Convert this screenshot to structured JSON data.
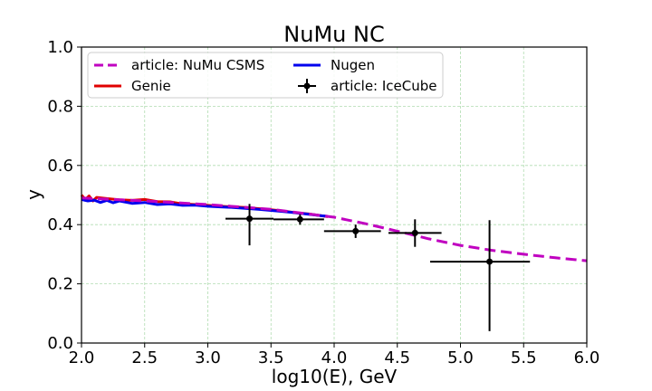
{
  "chart_data": {
    "type": "line",
    "title": "NuMu NC",
    "xlabel": "log10(E), GeV",
    "ylabel": "y",
    "xlim": [
      2.0,
      6.0
    ],
    "ylim": [
      0.0,
      1.0
    ],
    "xticks": [
      2.0,
      2.5,
      3.0,
      3.5,
      4.0,
      4.5,
      5.0,
      5.5,
      6.0
    ],
    "yticks": [
      0.0,
      0.2,
      0.4,
      0.6,
      0.8,
      1.0
    ],
    "xtick_labels": [
      "2.0",
      "2.5",
      "3.0",
      "3.5",
      "4.0",
      "4.5",
      "5.0",
      "5.5",
      "6.0"
    ],
    "ytick_labels": [
      "0.0",
      "0.2",
      "0.4",
      "0.6",
      "0.8",
      "1.0"
    ],
    "grid": true,
    "legend_position": "top-left",
    "series": [
      {
        "name": "article: NuMu CSMS",
        "style": "dashed",
        "color": "#c000c0",
        "x": [
          2.0,
          2.5,
          3.0,
          3.5,
          4.0,
          4.25,
          4.5,
          4.75,
          5.0,
          5.25,
          5.5,
          5.75,
          6.0
        ],
        "y": [
          0.49,
          0.48,
          0.468,
          0.452,
          0.425,
          0.403,
          0.378,
          0.352,
          0.33,
          0.313,
          0.3,
          0.288,
          0.278
        ]
      },
      {
        "name": "Genie",
        "style": "solid",
        "color": "#e00000",
        "x": [
          2.0,
          2.03,
          2.06,
          2.09,
          2.12,
          2.2,
          2.3,
          2.4,
          2.5,
          2.6,
          2.7,
          2.8,
          2.9,
          3.0,
          3.1,
          3.2,
          3.3,
          3.4,
          3.5,
          3.6,
          3.7,
          3.8,
          3.9,
          3.95
        ],
        "y": [
          0.5,
          0.485,
          0.497,
          0.48,
          0.492,
          0.488,
          0.484,
          0.482,
          0.485,
          0.478,
          0.477,
          0.47,
          0.468,
          0.465,
          0.462,
          0.46,
          0.458,
          0.454,
          0.45,
          0.446,
          0.44,
          0.436,
          0.43,
          0.427
        ]
      },
      {
        "name": "Nugen",
        "style": "solid",
        "color": "#0000ee",
        "x": [
          2.0,
          2.05,
          2.1,
          2.15,
          2.2,
          2.25,
          2.3,
          2.4,
          2.5,
          2.6,
          2.7,
          2.8,
          2.9,
          3.0,
          3.1,
          3.2,
          3.3,
          3.4,
          3.5,
          3.6,
          3.7,
          3.8,
          3.9,
          3.95
        ],
        "y": [
          0.485,
          0.48,
          0.483,
          0.475,
          0.482,
          0.474,
          0.48,
          0.472,
          0.475,
          0.468,
          0.47,
          0.465,
          0.466,
          0.462,
          0.46,
          0.458,
          0.455,
          0.452,
          0.448,
          0.444,
          0.44,
          0.435,
          0.43,
          0.428
        ]
      }
    ],
    "errorbar_series": {
      "name": "article: IceCube",
      "color": "#000000",
      "points": [
        {
          "x": 3.33,
          "xlo": 3.14,
          "xhi": 3.52,
          "y": 0.42,
          "ylo": 0.33,
          "yhi": 0.47
        },
        {
          "x": 3.73,
          "xlo": 3.52,
          "xhi": 3.92,
          "y": 0.418,
          "ylo": 0.4,
          "yhi": 0.435
        },
        {
          "x": 4.17,
          "xlo": 3.92,
          "xhi": 4.37,
          "y": 0.378,
          "ylo": 0.355,
          "yhi": 0.4
        },
        {
          "x": 4.64,
          "xlo": 4.43,
          "xhi": 4.85,
          "y": 0.372,
          "ylo": 0.325,
          "yhi": 0.418
        },
        {
          "x": 5.23,
          "xlo": 4.76,
          "xhi": 5.55,
          "y": 0.275,
          "ylo": 0.04,
          "yhi": 0.415
        }
      ]
    }
  }
}
